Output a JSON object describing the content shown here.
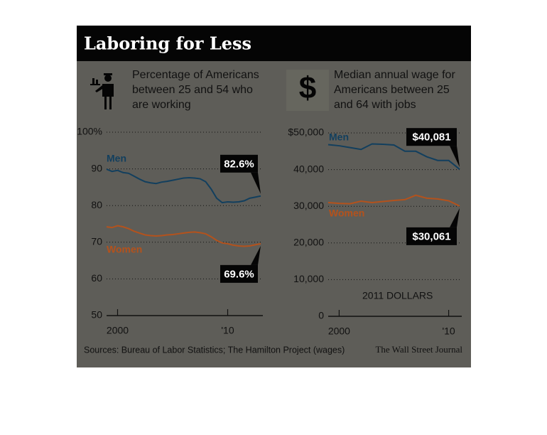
{
  "title": "Laboring for Less",
  "source": "Sources: Bureau of Labor Statistics; The Hamilton Project (wages)",
  "credit": "The Wall Street Journal",
  "chart_data": [
    {
      "type": "line",
      "subtitle": [
        "Percentage of Americans",
        "between 25 and 54 who",
        "are working"
      ],
      "x": [
        1999,
        1999.5,
        2000,
        2000.5,
        2001,
        2001.5,
        2002,
        2002.5,
        2003,
        2003.5,
        2004,
        2004.5,
        2005,
        2005.5,
        2006,
        2006.5,
        2007,
        2007.5,
        2008,
        2008.5,
        2009,
        2009.5,
        2010,
        2010.5,
        2011,
        2011.5,
        2012,
        2012.5,
        2013
      ],
      "series": [
        {
          "name": "Men",
          "color": "#123f5e",
          "values": [
            89.9,
            89.3,
            89.6,
            89.0,
            88.8,
            88.0,
            87.2,
            86.5,
            86.2,
            86.0,
            86.4,
            86.6,
            86.9,
            87.2,
            87.5,
            87.6,
            87.5,
            87.3,
            86.5,
            84.5,
            82.0,
            80.8,
            81.0,
            80.9,
            81.0,
            81.3,
            82.0,
            82.3,
            82.6
          ],
          "value_labels": [
            null,
            null,
            null,
            null,
            null,
            null,
            null,
            null,
            null,
            null,
            null,
            null,
            null,
            null,
            null,
            null,
            null,
            null,
            null,
            null,
            null,
            null,
            null,
            null,
            null,
            null,
            null,
            null,
            "82.6%"
          ]
        },
        {
          "name": "Women",
          "color": "#b4521c",
          "values": [
            74.2,
            74.0,
            74.5,
            74.2,
            73.7,
            73.0,
            72.5,
            72.0,
            71.8,
            71.7,
            71.8,
            72.0,
            72.1,
            72.3,
            72.5,
            72.7,
            72.8,
            72.6,
            72.3,
            71.5,
            70.5,
            69.8,
            69.6,
            69.2,
            69.0,
            68.9,
            69.0,
            69.3,
            69.6
          ],
          "value_labels": [
            null,
            null,
            null,
            null,
            null,
            null,
            null,
            null,
            null,
            null,
            null,
            null,
            null,
            null,
            null,
            null,
            null,
            null,
            null,
            null,
            null,
            null,
            null,
            null,
            null,
            null,
            null,
            null,
            "69.6%"
          ]
        }
      ],
      "xlim": [
        1999,
        2013
      ],
      "xticks": [
        2000,
        {
          "value": 2010,
          "label": "'10"
        }
      ],
      "ylim": [
        50,
        100
      ],
      "yticks": [
        50,
        60,
        70,
        80,
        90,
        {
          "value": 100,
          "label": "100%"
        }
      ],
      "grid": true
    },
    {
      "type": "line",
      "icon": "$",
      "subtitle": [
        "Median annual wage for",
        "Americans between 25",
        "and 64 with jobs"
      ],
      "annotation": "2011 DOLLARS",
      "x": [
        1999,
        2000,
        2001,
        2002,
        2003,
        2004,
        2005,
        2006,
        2007,
        2008,
        2009,
        2010,
        2011
      ],
      "series": [
        {
          "name": "Men",
          "color": "#123f5e",
          "values": [
            46800,
            46500,
            46000,
            45500,
            47000,
            46900,
            46700,
            45000,
            45000,
            43500,
            42500,
            42500,
            40081
          ],
          "value_labels": [
            null,
            null,
            null,
            null,
            null,
            null,
            null,
            null,
            null,
            null,
            null,
            null,
            "$40,081"
          ]
        },
        {
          "name": "Women",
          "color": "#b4521c",
          "values": [
            31000,
            30800,
            30700,
            31400,
            31000,
            31300,
            31600,
            31800,
            33000,
            32200,
            32000,
            31500,
            30061
          ],
          "value_labels": [
            null,
            null,
            null,
            null,
            null,
            null,
            null,
            null,
            null,
            null,
            null,
            null,
            "$30,061"
          ]
        }
      ],
      "xlim": [
        1999,
        2011
      ],
      "xticks": [
        2000,
        {
          "value": 2010,
          "label": "'10"
        }
      ],
      "ylim": [
        0,
        50000
      ],
      "yticks": [
        0,
        {
          "value": 10000,
          "label": "10,000"
        },
        {
          "value": 20000,
          "label": "20,000"
        },
        {
          "value": 30000,
          "label": "30,000"
        },
        {
          "value": 40000,
          "label": "40,000"
        },
        {
          "value": 50000,
          "label": "$50,000"
        }
      ],
      "grid": true
    }
  ]
}
